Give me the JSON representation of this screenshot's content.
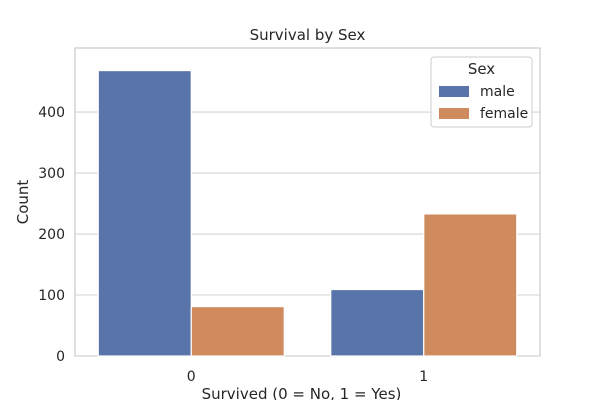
{
  "chart_data": {
    "type": "bar",
    "title": "Survival by Sex",
    "xlabel": "Survived (0 = No, 1 = Yes)",
    "ylabel": "Count",
    "categories": [
      "0",
      "1"
    ],
    "series": [
      {
        "name": "male",
        "values": [
          468,
          109
        ],
        "color": "#5874a8"
      },
      {
        "name": "female",
        "values": [
          81,
          233
        ],
        "color": "#cf8a5d"
      }
    ],
    "ylim": [
      0,
      505
    ],
    "yticks": [
      0,
      100,
      200,
      300,
      400
    ],
    "grid": "horizontal",
    "legend": {
      "title": "Sex",
      "placement": "top-right"
    }
  }
}
